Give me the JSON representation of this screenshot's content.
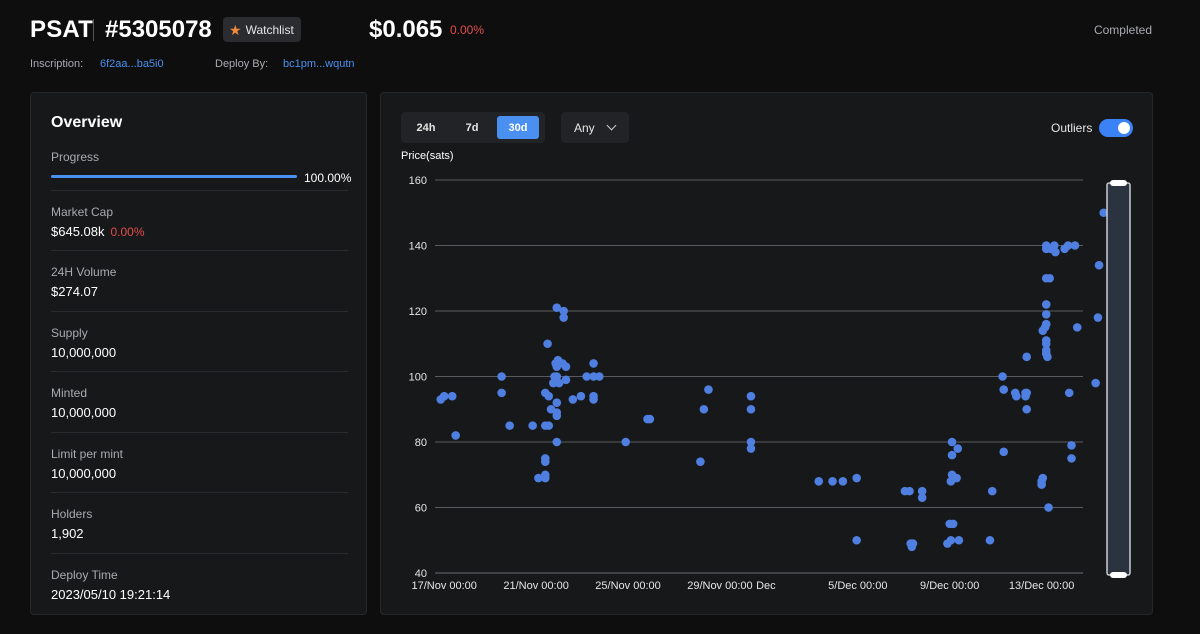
{
  "header": {
    "ticker": "PSAT",
    "inscription_number": "#5305078",
    "watchlist_label": "Watchlist",
    "price": "$0.065",
    "price_change": "0.00%",
    "status": "Completed",
    "inscription_label": "Inscription:",
    "inscription_id": "6f2aa...ba5i0",
    "deploy_by_label": "Deploy By:",
    "deploy_by": "bc1pm...wqutn"
  },
  "overview": {
    "title": "Overview",
    "progress_label": "Progress",
    "progress_value": "100.00%",
    "progress_fraction": 1.0,
    "rows": [
      {
        "label": "Market Cap",
        "value": "$645.08k",
        "change": "0.00%"
      },
      {
        "label": "24H Volume",
        "value": "$274.07"
      },
      {
        "label": "Supply",
        "value": "10,000,000"
      },
      {
        "label": "Minted",
        "value": "10,000,000"
      },
      {
        "label": "Limit per mint",
        "value": "10,000,000"
      },
      {
        "label": "Holders",
        "value": "1,902"
      },
      {
        "label": "Deploy Time",
        "value": "2023/05/10 19:21:14"
      }
    ]
  },
  "controls": {
    "timeframes": [
      "24h",
      "7d",
      "30d"
    ],
    "active_timeframe": "30d",
    "filter_value": "Any",
    "outliers_label": "Outliers",
    "outliers_on": true
  },
  "colors": {
    "accent": "#4a90f0",
    "negative": "#e24c4c",
    "point": "#4f7fe0"
  },
  "chart_data": {
    "type": "scatter",
    "ylabel": "Price(sats)",
    "ylim": [
      40,
      160
    ],
    "yticks": [
      40,
      60,
      80,
      100,
      120,
      140,
      160
    ],
    "xlim": [
      -0.4,
      27.8
    ],
    "xtick_labels": [
      {
        "x": 0,
        "label": "17/Nov 00:00"
      },
      {
        "x": 4,
        "label": "21/Nov 00:00"
      },
      {
        "x": 8,
        "label": "25/Nov 00:00"
      },
      {
        "x": 12,
        "label": "29/Nov 00:00"
      },
      {
        "x": 14,
        "label": "Dec"
      },
      {
        "x": 18,
        "label": "5/Dec 00:00"
      },
      {
        "x": 22,
        "label": "9/Dec 00:00"
      },
      {
        "x": 26,
        "label": "13/Dec 00:00"
      }
    ],
    "x_unit": "days since 17/Nov 00:00",
    "points": [
      [
        -0.15,
        93
      ],
      [
        0.0,
        94
      ],
      [
        0.35,
        94
      ],
      [
        0.5,
        82
      ],
      [
        2.5,
        100
      ],
      [
        2.5,
        95
      ],
      [
        2.85,
        85
      ],
      [
        3.85,
        85
      ],
      [
        4.1,
        69
      ],
      [
        4.4,
        70
      ],
      [
        4.4,
        69
      ],
      [
        4.4,
        74
      ],
      [
        4.4,
        75
      ],
      [
        4.4,
        85
      ],
      [
        4.4,
        95
      ],
      [
        4.5,
        110
      ],
      [
        4.55,
        85
      ],
      [
        4.55,
        94
      ],
      [
        4.65,
        90
      ],
      [
        4.75,
        98
      ],
      [
        4.8,
        100
      ],
      [
        4.85,
        104
      ],
      [
        4.9,
        100
      ],
      [
        4.9,
        103
      ],
      [
        4.9,
        92
      ],
      [
        4.9,
        89
      ],
      [
        4.9,
        88
      ],
      [
        4.9,
        80
      ],
      [
        4.9,
        121
      ],
      [
        4.95,
        105
      ],
      [
        5.0,
        98
      ],
      [
        5.15,
        104
      ],
      [
        5.2,
        120
      ],
      [
        5.2,
        118
      ],
      [
        5.3,
        103
      ],
      [
        5.3,
        99
      ],
      [
        5.6,
        93
      ],
      [
        5.95,
        94
      ],
      [
        6.2,
        100
      ],
      [
        6.5,
        104
      ],
      [
        6.5,
        100
      ],
      [
        6.5,
        94
      ],
      [
        6.5,
        93
      ],
      [
        6.75,
        100
      ],
      [
        7.9,
        80
      ],
      [
        8.85,
        87
      ],
      [
        8.95,
        87
      ],
      [
        11.15,
        74
      ],
      [
        11.3,
        90
      ],
      [
        11.5,
        96
      ],
      [
        13.35,
        94
      ],
      [
        13.35,
        90
      ],
      [
        13.35,
        80
      ],
      [
        13.35,
        78
      ],
      [
        16.3,
        68
      ],
      [
        16.9,
        68
      ],
      [
        17.35,
        68
      ],
      [
        17.95,
        50
      ],
      [
        17.95,
        69
      ],
      [
        20.05,
        65
      ],
      [
        20.25,
        65
      ],
      [
        20.3,
        49
      ],
      [
        20.35,
        48
      ],
      [
        20.4,
        49
      ],
      [
        20.8,
        65
      ],
      [
        20.8,
        63
      ],
      [
        21.9,
        49
      ],
      [
        22.0,
        55
      ],
      [
        22.05,
        50
      ],
      [
        22.05,
        68
      ],
      [
        22.1,
        80
      ],
      [
        22.1,
        76
      ],
      [
        22.1,
        70
      ],
      [
        22.15,
        55
      ],
      [
        22.3,
        69
      ],
      [
        22.35,
        78
      ],
      [
        22.4,
        50
      ],
      [
        23.75,
        50
      ],
      [
        23.85,
        65
      ],
      [
        24.3,
        100
      ],
      [
        24.35,
        96
      ],
      [
        24.35,
        77
      ],
      [
        24.85,
        95
      ],
      [
        24.9,
        94
      ],
      [
        25.3,
        95
      ],
      [
        25.3,
        94
      ],
      [
        25.35,
        106
      ],
      [
        25.35,
        90
      ],
      [
        25.35,
        95
      ],
      [
        26.0,
        68
      ],
      [
        26.0,
        67
      ],
      [
        26.05,
        114
      ],
      [
        26.05,
        69
      ],
      [
        26.15,
        115
      ],
      [
        26.2,
        140
      ],
      [
        26.2,
        139
      ],
      [
        26.2,
        130
      ],
      [
        26.2,
        122
      ],
      [
        26.2,
        119
      ],
      [
        26.2,
        116
      ],
      [
        26.2,
        111
      ],
      [
        26.2,
        110
      ],
      [
        26.2,
        108
      ],
      [
        26.2,
        107
      ],
      [
        26.25,
        106
      ],
      [
        26.3,
        60
      ],
      [
        26.35,
        130
      ],
      [
        26.4,
        139
      ],
      [
        26.55,
        140
      ],
      [
        26.6,
        138
      ],
      [
        27.0,
        139
      ],
      [
        27.15,
        140
      ],
      [
        27.2,
        95
      ],
      [
        27.3,
        79
      ],
      [
        27.3,
        75
      ],
      [
        27.45,
        140
      ],
      [
        27.55,
        115
      ],
      [
        28.35,
        98
      ],
      [
        28.45,
        118
      ],
      [
        28.5,
        134
      ],
      [
        28.7,
        150
      ]
    ]
  }
}
